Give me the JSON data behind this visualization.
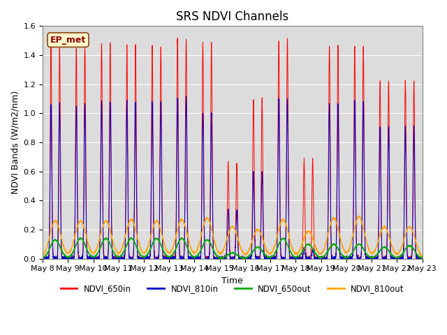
{
  "title": "SRS NDVI Channels",
  "xlabel": "Time",
  "ylabel": "NDVI Bands (W/m2/nm)",
  "annotation": "EP_met",
  "ylim": [
    0,
    1.6
  ],
  "tick_labels": [
    "May 8",
    "May 9",
    "May 10",
    "May 11",
    "May 12",
    "May 13",
    "May 14",
    "May 15",
    "May 16",
    "May 17",
    "May 18",
    "May 19",
    "May 20",
    "May 21",
    "May 22",
    "May 23"
  ],
  "colors": {
    "NDVI_650in": "#FF0000",
    "NDVI_810in": "#0000CC",
    "NDVI_650out": "#00AA00",
    "NDVI_810out": "#FFA500"
  },
  "plot_bg": "#DCDCDC",
  "title_fontsize": 12,
  "label_fontsize": 9,
  "tick_fontsize": 8,
  "red_peaks": [
    1.46,
    1.45,
    1.48,
    1.47,
    1.46,
    1.51,
    1.48,
    0.66,
    1.1,
    1.51,
    0.68,
    1.46,
    1.46,
    1.22,
    1.22
  ],
  "blue_peaks": [
    1.06,
    1.06,
    1.08,
    1.08,
    1.07,
    1.11,
    1.0,
    0.33,
    0.6,
    1.1,
    0.07,
    1.07,
    1.08,
    0.91,
    0.91
  ],
  "green_peaks": [
    0.13,
    0.14,
    0.14,
    0.14,
    0.14,
    0.14,
    0.13,
    0.04,
    0.08,
    0.14,
    0.1,
    0.1,
    0.1,
    0.08,
    0.09
  ],
  "orange_peaks": [
    0.26,
    0.26,
    0.26,
    0.27,
    0.26,
    0.27,
    0.28,
    0.22,
    0.2,
    0.27,
    0.19,
    0.28,
    0.29,
    0.22,
    0.22
  ]
}
